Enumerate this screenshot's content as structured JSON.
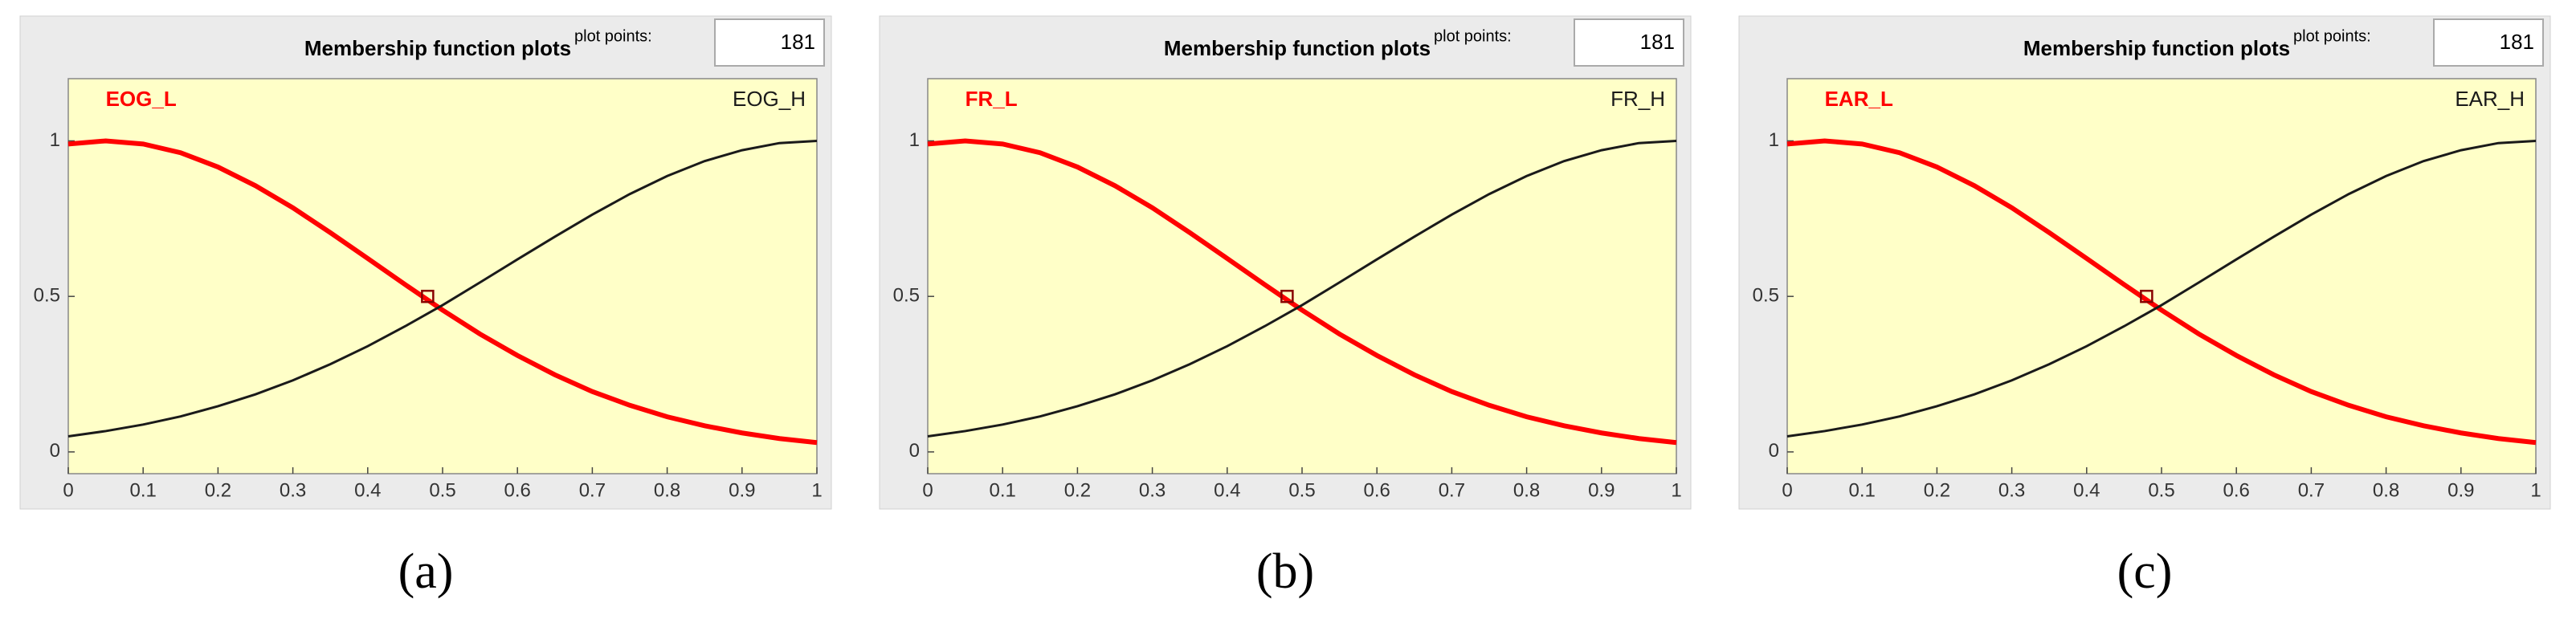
{
  "chart_data": [
    {
      "type": "line",
      "title": "Membership function plots",
      "plot_points_label": "plot points:",
      "plot_points": 181,
      "caption": "(a)",
      "x": [
        0,
        0.05,
        0.1,
        0.15,
        0.2,
        0.25,
        0.3,
        0.35,
        0.4,
        0.45,
        0.5,
        0.55,
        0.6,
        0.65,
        0.7,
        0.75,
        0.8,
        0.85,
        0.9,
        0.95,
        1
      ],
      "series": [
        {
          "name": "EOG_L",
          "color": "#ff0000",
          "values": [
            0.99,
            1,
            0.99,
            0.962,
            0.916,
            0.856,
            0.785,
            0.705,
            0.622,
            0.538,
            0.456,
            0.379,
            0.31,
            0.248,
            0.194,
            0.15,
            0.113,
            0.084,
            0.061,
            0.043,
            0.03
          ]
        },
        {
          "name": "EOG_H",
          "color": "#1a1a1a",
          "values": [
            0.05,
            0.067,
            0.088,
            0.114,
            0.147,
            0.185,
            0.23,
            0.282,
            0.34,
            0.404,
            0.472,
            0.545,
            0.619,
            0.692,
            0.763,
            0.829,
            0.887,
            0.935,
            0.97,
            0.993,
            1
          ]
        }
      ],
      "marker": {
        "x": 0.48,
        "y": 0.5
      },
      "xlim": [
        0,
        1
      ],
      "ylim": [
        -0.07,
        1.2
      ],
      "xticks": [
        0,
        0.1,
        0.2,
        0.3,
        0.4,
        0.5,
        0.6,
        0.7,
        0.8,
        0.9,
        1
      ],
      "yticks": [
        0,
        0.5,
        1
      ]
    },
    {
      "type": "line",
      "title": "Membership function plots",
      "plot_points_label": "plot points:",
      "plot_points": 181,
      "caption": "(b)",
      "x": [
        0,
        0.05,
        0.1,
        0.15,
        0.2,
        0.25,
        0.3,
        0.35,
        0.4,
        0.45,
        0.5,
        0.55,
        0.6,
        0.65,
        0.7,
        0.75,
        0.8,
        0.85,
        0.9,
        0.95,
        1
      ],
      "series": [
        {
          "name": "FR_L",
          "color": "#ff0000",
          "values": [
            0.99,
            1,
            0.99,
            0.962,
            0.916,
            0.856,
            0.785,
            0.705,
            0.622,
            0.538,
            0.456,
            0.379,
            0.31,
            0.248,
            0.194,
            0.15,
            0.113,
            0.084,
            0.061,
            0.043,
            0.03
          ]
        },
        {
          "name": "FR_H",
          "color": "#1a1a1a",
          "values": [
            0.05,
            0.067,
            0.088,
            0.114,
            0.147,
            0.185,
            0.23,
            0.282,
            0.34,
            0.404,
            0.472,
            0.545,
            0.619,
            0.692,
            0.763,
            0.829,
            0.887,
            0.935,
            0.97,
            0.993,
            1
          ]
        }
      ],
      "marker": {
        "x": 0.48,
        "y": 0.5
      },
      "xlim": [
        0,
        1
      ],
      "ylim": [
        -0.07,
        1.2
      ],
      "xticks": [
        0,
        0.1,
        0.2,
        0.3,
        0.4,
        0.5,
        0.6,
        0.7,
        0.8,
        0.9,
        1
      ],
      "yticks": [
        0,
        0.5,
        1
      ]
    },
    {
      "type": "line",
      "title": "Membership function plots",
      "plot_points_label": "plot points:",
      "plot_points": 181,
      "caption": "(c)",
      "x": [
        0,
        0.05,
        0.1,
        0.15,
        0.2,
        0.25,
        0.3,
        0.35,
        0.4,
        0.45,
        0.5,
        0.55,
        0.6,
        0.65,
        0.7,
        0.75,
        0.8,
        0.85,
        0.9,
        0.95,
        1
      ],
      "series": [
        {
          "name": "EAR_L",
          "color": "#ff0000",
          "values": [
            0.99,
            1,
            0.99,
            0.962,
            0.916,
            0.856,
            0.785,
            0.705,
            0.622,
            0.538,
            0.456,
            0.379,
            0.31,
            0.248,
            0.194,
            0.15,
            0.113,
            0.084,
            0.061,
            0.043,
            0.03
          ]
        },
        {
          "name": "EAR_H",
          "color": "#1a1a1a",
          "values": [
            0.05,
            0.067,
            0.088,
            0.114,
            0.147,
            0.185,
            0.23,
            0.282,
            0.34,
            0.404,
            0.472,
            0.545,
            0.619,
            0.692,
            0.763,
            0.829,
            0.887,
            0.935,
            0.97,
            0.993,
            1
          ]
        }
      ],
      "marker": {
        "x": 0.48,
        "y": 0.5
      },
      "xlim": [
        0,
        1
      ],
      "ylim": [
        -0.07,
        1.2
      ],
      "xticks": [
        0,
        0.1,
        0.2,
        0.3,
        0.4,
        0.5,
        0.6,
        0.7,
        0.8,
        0.9,
        1
      ],
      "yticks": [
        0,
        0.5,
        1
      ]
    }
  ]
}
